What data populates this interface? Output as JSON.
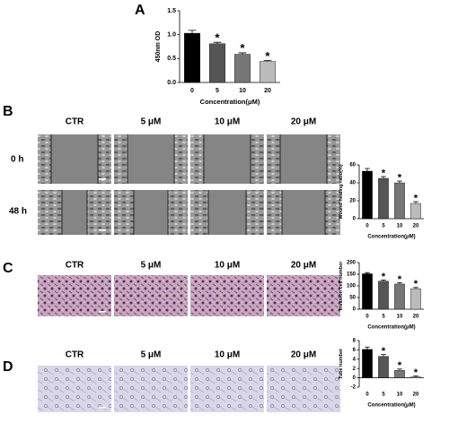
{
  "panel_labels": [
    "A",
    "B",
    "C",
    "D"
  ],
  "image_panels": [
    {
      "columns": [
        "CTR",
        "5 μM",
        "10 μM",
        "20 μM"
      ],
      "rows": [
        "0 h",
        "48 h"
      ]
    },
    {
      "columns": [
        "CTR",
        "5 μM",
        "10 μM",
        "20 μM"
      ]
    },
    {
      "columns": [
        "CTR",
        "5 μM",
        "10 μM",
        "20 μM"
      ]
    }
  ],
  "chart_data": [
    {
      "type": "bar",
      "ylabel": "450nm OD",
      "xlabel": "Concentration(μM)",
      "categories": [
        "0",
        "5",
        "10",
        "20"
      ],
      "values": [
        1.03,
        0.81,
        0.59,
        0.44
      ],
      "errors": [
        0.06,
        0.03,
        0.03,
        0.02
      ],
      "significance": [
        null,
        "*",
        "*",
        "*"
      ],
      "colors": [
        "#000000",
        "#555555",
        "#777777",
        "#bbbbbb"
      ],
      "ylim": [
        0,
        1.5
      ],
      "yticks": [
        {
          "value": 0,
          "label": "0.0"
        },
        {
          "value": 0.5,
          "label": "0.5"
        },
        {
          "value": 1,
          "label": "1.0"
        },
        {
          "value": 1.5,
          "label": "1.5"
        }
      ]
    },
    {
      "type": "bar",
      "ylabel": "Wound healing ratio(%)",
      "xlabel": "Concentration(μM)",
      "categories": [
        "0",
        "5",
        "10",
        "20"
      ],
      "values": [
        53,
        45,
        40,
        17
      ],
      "errors": [
        3,
        2,
        2,
        2
      ],
      "significance": [
        null,
        "*",
        "*",
        "*"
      ],
      "colors": [
        "#000000",
        "#555555",
        "#777777",
        "#bbbbbb"
      ],
      "ylim": [
        0,
        60
      ],
      "yticks": [
        0,
        20,
        40,
        60
      ]
    },
    {
      "type": "bar",
      "ylabel": "Invasion cell number",
      "xlabel": "Concentration(μM)",
      "categories": [
        "0",
        "5",
        "10",
        "20"
      ],
      "values": [
        152,
        120,
        108,
        88
      ],
      "errors": [
        5,
        5,
        6,
        5
      ],
      "significance": [
        null,
        "*",
        "*",
        "*"
      ],
      "colors": [
        "#000000",
        "#555555",
        "#777777",
        "#bbbbbb"
      ],
      "ylim": [
        0,
        200
      ],
      "yticks": [
        0,
        50,
        100,
        150,
        200
      ]
    },
    {
      "type": "bar",
      "ylabel": "Tube number",
      "xlabel": "Concentration(μM)",
      "categories": [
        "0",
        "5",
        "10",
        "20"
      ],
      "values": [
        6.1,
        4.6,
        1.6,
        0.2
      ],
      "errors": [
        0.5,
        0.4,
        0.3,
        0.2
      ],
      "significance": [
        null,
        "*",
        "*",
        "*"
      ],
      "colors": [
        "#000000",
        "#555555",
        "#777777",
        "#bbbbbb"
      ],
      "ylim": [
        -2,
        8
      ],
      "yticks": [
        -2,
        0,
        2,
        4,
        6,
        8
      ]
    }
  ]
}
